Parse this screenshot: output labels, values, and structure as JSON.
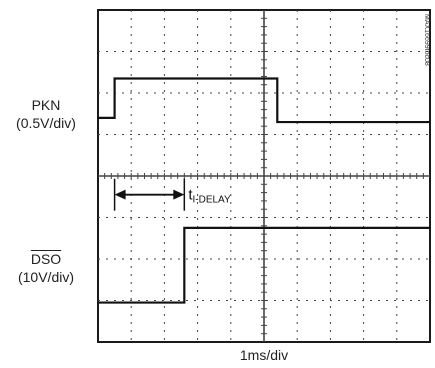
{
  "chart_data": {
    "type": "line",
    "title": "",
    "xlabel": "1ms/div",
    "x_divisions": 10,
    "y_divisions": 8,
    "grid": true,
    "watermark": "MAX16699toc08",
    "series": [
      {
        "name": "PKN",
        "scale": "0.5V/div",
        "x": [
          0.0,
          0.5,
          0.5,
          5.4,
          5.4,
          10.0
        ],
        "y": [
          5.4,
          5.4,
          6.35,
          6.35,
          5.3,
          5.3
        ]
      },
      {
        "name": "DSO",
        "scale": "10V/div",
        "x": [
          0.0,
          2.6,
          2.6,
          10.0
        ],
        "y": [
          0.95,
          0.95,
          2.75,
          2.75
        ]
      }
    ],
    "annotation": {
      "label_main": "t",
      "label_sub": "I-DELAY",
      "from_x": 0.5,
      "to_x": 2.6,
      "y": 3.55
    }
  },
  "labels": {
    "pkn_name": "PKN",
    "pkn_scale": "(0.5V/div)",
    "dso_name": "DSO",
    "dso_scale": "(10V/div)",
    "time_scale": "1ms/div"
  }
}
